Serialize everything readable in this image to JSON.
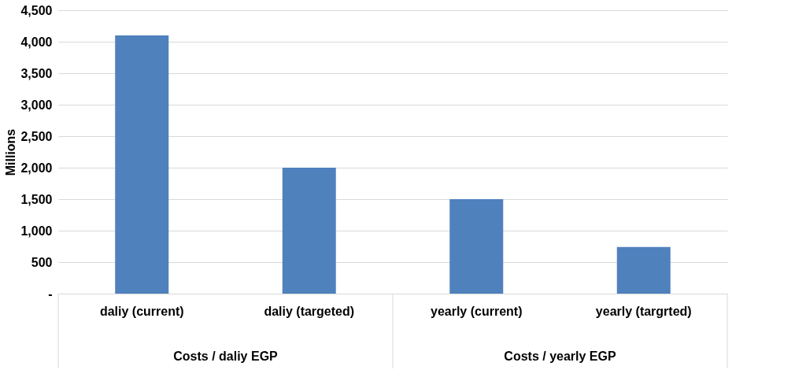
{
  "chart_data": {
    "type": "bar",
    "ylabel": "Millions",
    "categories": [
      "daliy (current)",
      "daliy (targeted)",
      "yearly (current)",
      "yearly (targrted)"
    ],
    "values": [
      4100,
      2000,
      1500,
      740
    ],
    "color": "#4f81bd",
    "ylim": [
      0,
      4500
    ],
    "yticks": [
      {
        "value": 0,
        "label": "-"
      },
      500,
      {
        "value": 1000,
        "label": "1,000"
      },
      {
        "value": 1500,
        "label": "1,500"
      },
      {
        "value": 2000,
        "label": "2,000"
      },
      {
        "value": 2500,
        "label": "2,500"
      },
      {
        "value": 3000,
        "label": "3,000"
      },
      {
        "value": 3500,
        "label": "3,500"
      },
      {
        "value": 4000,
        "label": "4,000"
      },
      {
        "value": 4500,
        "label": "4,500"
      }
    ],
    "grid": "y",
    "annotations": [
      "Costs / daliy  EGP",
      "Costs / yearly EGP"
    ]
  }
}
